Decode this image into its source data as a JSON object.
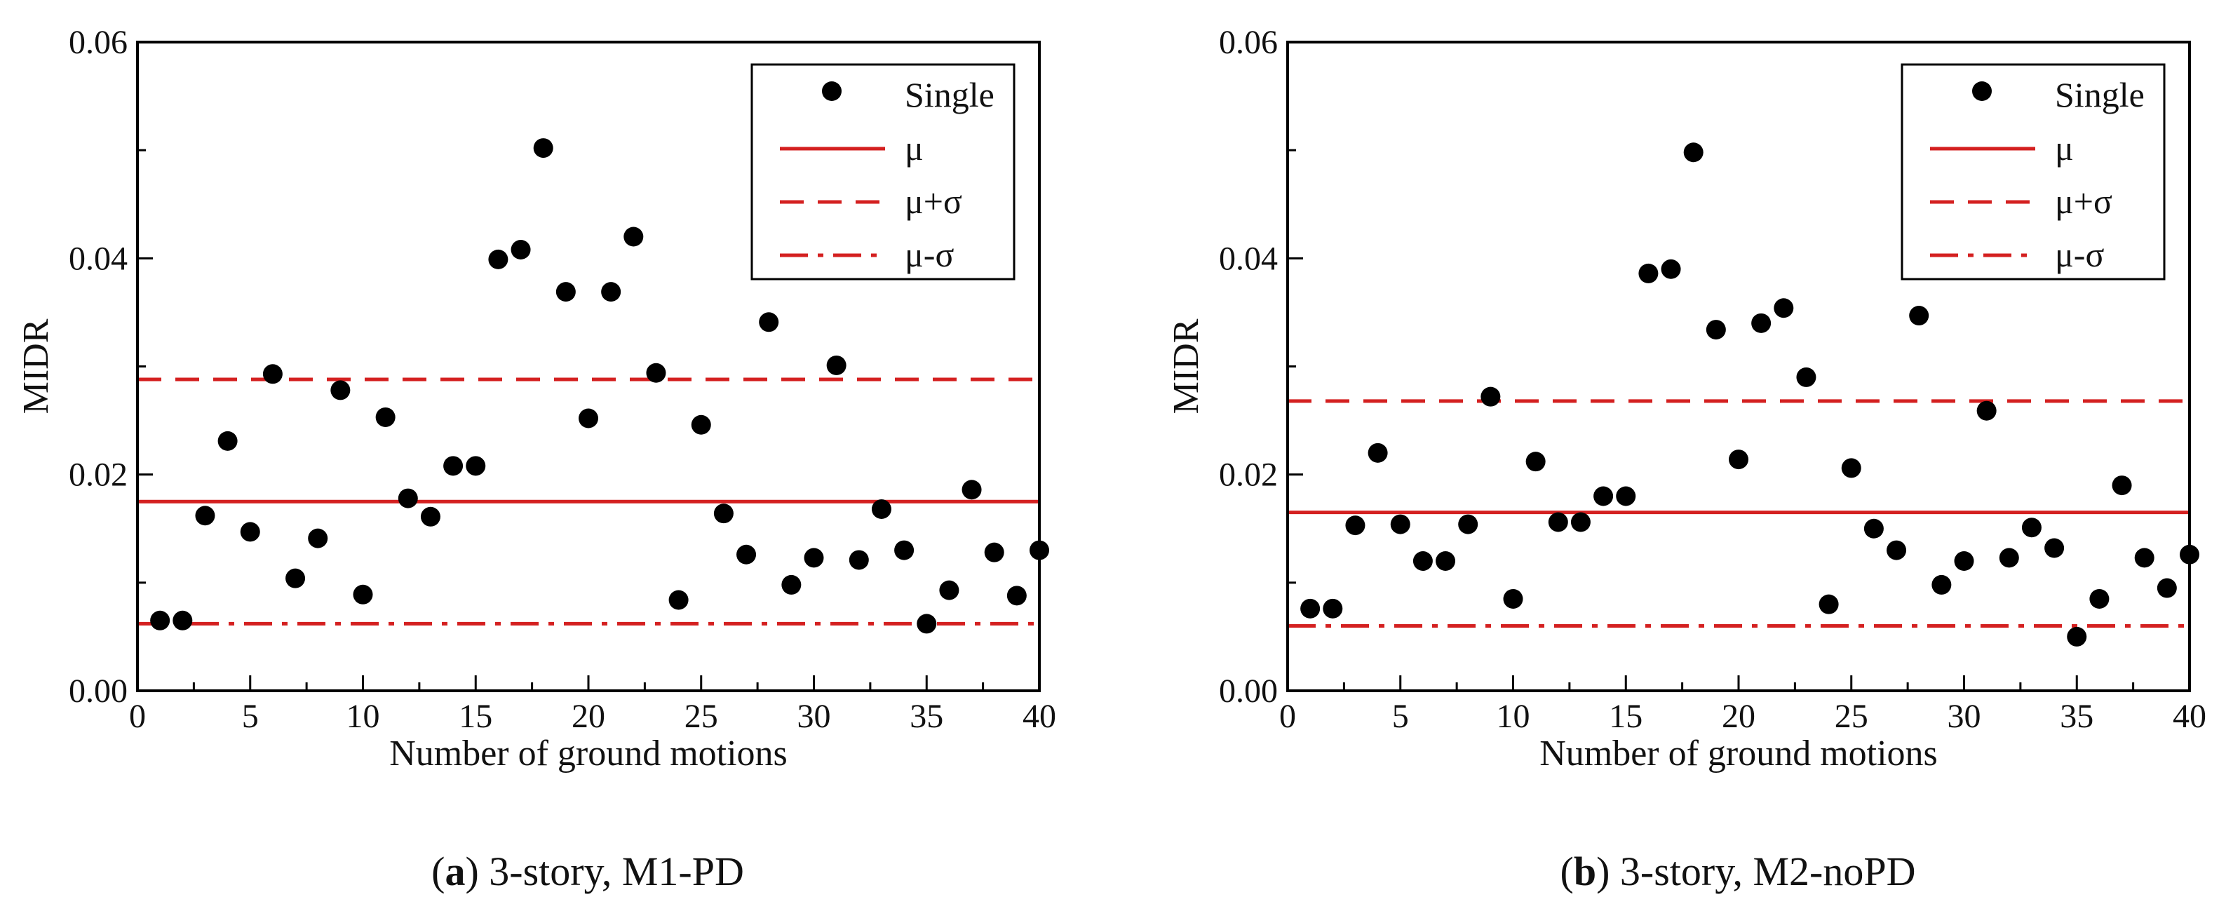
{
  "chart_data": [
    {
      "type": "scatter",
      "caption": {
        "letter": "a",
        "text": " 3-story, M1-PD"
      },
      "xlabel": "Number of ground motions",
      "ylabel": "MIDR",
      "xlim": [
        0,
        40
      ],
      "ylim": [
        0,
        0.06
      ],
      "xticks": [
        0,
        5,
        10,
        15,
        20,
        25,
        30,
        35,
        40
      ],
      "yticks": [
        "0.00",
        "0.02",
        "0.04",
        "0.06"
      ],
      "yvalues": [
        0,
        0.02,
        0.04,
        0.06
      ],
      "legend": {
        "position": "top-right",
        "entries": [
          "Single",
          "μ",
          "μ+σ",
          "μ-σ"
        ]
      },
      "series": [
        {
          "name": "Single",
          "x": [
            1,
            2,
            3,
            4,
            5,
            6,
            7,
            8,
            9,
            10,
            11,
            12,
            13,
            14,
            15,
            16,
            17,
            18,
            19,
            20,
            21,
            22,
            23,
            24,
            25,
            26,
            27,
            28,
            29,
            30,
            31,
            32,
            33,
            34,
            35,
            36,
            37,
            38,
            39,
            40
          ],
          "values": [
            0.0065,
            0.0065,
            0.0162,
            0.0231,
            0.0147,
            0.0293,
            0.0104,
            0.0141,
            0.0278,
            0.0089,
            0.0253,
            0.0178,
            0.0161,
            0.0208,
            0.0208,
            0.0399,
            0.0408,
            0.0502,
            0.0369,
            0.0252,
            0.0369,
            0.042,
            0.0294,
            0.0084,
            0.0246,
            0.0164,
            0.0126,
            0.0341,
            0.0098,
            0.0123,
            0.0301,
            0.0121,
            0.0168,
            0.013,
            0.0062,
            0.0093,
            0.0186,
            0.0128,
            0.0088,
            0.013
          ]
        }
      ],
      "lines": [
        {
          "name": "μ",
          "value": 0.0175,
          "style": "solid"
        },
        {
          "name": "μ+σ",
          "value": 0.0288,
          "style": "dashed"
        },
        {
          "name": "μ-σ",
          "value": 0.0062,
          "style": "dashdot"
        }
      ]
    },
    {
      "type": "scatter",
      "caption": {
        "letter": "b",
        "text": " 3-story, M2-noPD"
      },
      "xlabel": "Number of ground motions",
      "ylabel": "MIDR",
      "xlim": [
        0,
        40
      ],
      "ylim": [
        0,
        0.06
      ],
      "xticks": [
        0,
        5,
        10,
        15,
        20,
        25,
        30,
        35,
        40
      ],
      "yticks": [
        "0.00",
        "0.02",
        "0.04",
        "0.06"
      ],
      "yvalues": [
        0,
        0.02,
        0.04,
        0.06
      ],
      "legend": {
        "position": "top-right",
        "entries": [
          "Single",
          "μ",
          "μ+σ",
          "μ-σ"
        ]
      },
      "series": [
        {
          "name": "Single",
          "x": [
            1,
            2,
            3,
            4,
            5,
            6,
            7,
            8,
            9,
            10,
            11,
            12,
            13,
            14,
            15,
            16,
            17,
            18,
            19,
            20,
            21,
            22,
            23,
            24,
            25,
            26,
            27,
            28,
            29,
            30,
            31,
            32,
            33,
            34,
            35,
            36,
            37,
            38,
            39,
            40
          ],
          "values": [
            0.0076,
            0.0076,
            0.0153,
            0.022,
            0.0154,
            0.012,
            0.012,
            0.0154,
            0.0272,
            0.0085,
            0.0212,
            0.0156,
            0.0156,
            0.018,
            0.018,
            0.0386,
            0.039,
            0.0498,
            0.0334,
            0.0214,
            0.034,
            0.0354,
            0.029,
            0.008,
            0.0206,
            0.015,
            0.013,
            0.0347,
            0.0098,
            0.012,
            0.0259,
            0.0123,
            0.0151,
            0.0132,
            0.005,
            0.0085,
            0.019,
            0.0123,
            0.0095,
            0.0126
          ]
        }
      ],
      "lines": [
        {
          "name": "μ",
          "value": 0.0165,
          "style": "solid"
        },
        {
          "name": "μ+σ",
          "value": 0.0268,
          "style": "dashed"
        },
        {
          "name": "μ-σ",
          "value": 0.006,
          "style": "dashdot"
        }
      ]
    }
  ],
  "colors": {
    "mean_line": "#d42020",
    "marker": "#000000",
    "axis": "#000000"
  }
}
